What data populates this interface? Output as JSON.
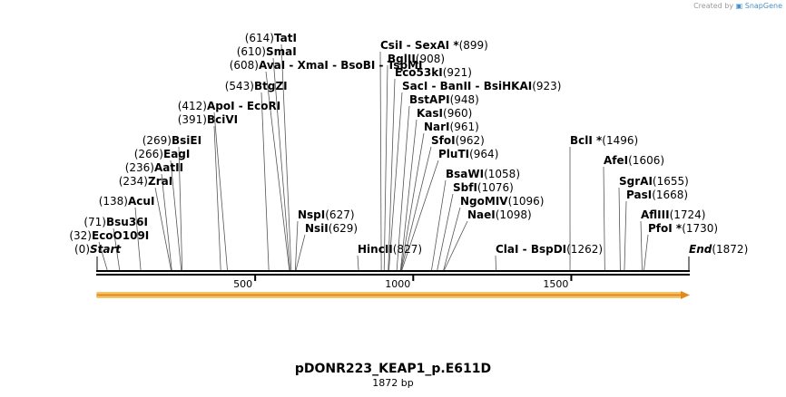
{
  "credit": {
    "text": "Created by",
    "logo": "SnapGene"
  },
  "title": "pDONR223_KEAP1_p.E611D",
  "subtitle": "1872 bp",
  "colors": {
    "feature_fill": "#f5c46a",
    "feature_stroke": "#e08a1e",
    "line": "#000000"
  },
  "sequence_length": 1872,
  "ticks": [
    {
      "label": "500",
      "value": 500
    },
    {
      "label": "1000",
      "value": 1000
    },
    {
      "label": "1500",
      "value": 1500
    }
  ],
  "sites": [
    {
      "pos_text": "(0)",
      "name": "Start",
      "pos": 0,
      "italic": true
    },
    {
      "pos_text": "(32)",
      "name": "EcoO109I",
      "pos": 32
    },
    {
      "pos_text": "(71)",
      "name": "Bsu36I",
      "pos": 71
    },
    {
      "pos_text": "(138)",
      "name": "AcuI",
      "pos": 138
    },
    {
      "pos_text": "(234)",
      "name": "ZraI",
      "pos": 234
    },
    {
      "pos_text": "(236)",
      "name": "AatII",
      "pos": 236
    },
    {
      "pos_text": "(266)",
      "name": "EagI",
      "pos": 266
    },
    {
      "pos_text": "(269)",
      "name": "BsiEI",
      "pos": 269
    },
    {
      "pos_text": "(391)",
      "name": "BciVI",
      "pos": 391
    },
    {
      "pos_text": "(412)",
      "name": "ApoI  - EcoRI",
      "pos": 412
    },
    {
      "pos_text": "(543)",
      "name": "BtgZI",
      "pos": 543
    },
    {
      "pos_text": "(608)",
      "name": "AvaI  - XmaI  - BsoBI  - TspMI",
      "pos": 608
    },
    {
      "pos_text": "(610)",
      "name": "SmaI",
      "pos": 610
    },
    {
      "pos_text": "(614)",
      "name": "TatI",
      "pos": 614
    },
    {
      "name": "NspI",
      "pos_text": "(627)",
      "pos": 627
    },
    {
      "name": "NsiI",
      "pos_text": "(629)",
      "pos": 629
    },
    {
      "name": "HincII",
      "pos_text": "(827)",
      "pos": 827
    },
    {
      "name": "CsiI  - SexAI *",
      "pos_text": "(899)",
      "pos": 899
    },
    {
      "name": "BglII",
      "pos_text": "(908)",
      "pos": 908
    },
    {
      "name": "Eco53kI",
      "pos_text": "(921)",
      "pos": 921
    },
    {
      "name": "SacI  - BanII  - BsiHKAI",
      "pos_text": "(923)",
      "pos": 923
    },
    {
      "name": "BstAPI",
      "pos_text": "(948)",
      "pos": 948
    },
    {
      "name": "KasI",
      "pos_text": "(960)",
      "pos": 960
    },
    {
      "name": "NarI",
      "pos_text": "(961)",
      "pos": 961
    },
    {
      "name": "SfoI",
      "pos_text": "(962)",
      "pos": 962
    },
    {
      "name": "PluTI",
      "pos_text": "(964)",
      "pos": 964
    },
    {
      "name": "BsaWI",
      "pos_text": "(1058)",
      "pos": 1058
    },
    {
      "name": "SbfI",
      "pos_text": "(1076)",
      "pos": 1076
    },
    {
      "name": "NgoMIV",
      "pos_text": "(1096)",
      "pos": 1096
    },
    {
      "name": "NaeI",
      "pos_text": "(1098)",
      "pos": 1098
    },
    {
      "name": "ClaI  - BspDI",
      "pos_text": "(1262)",
      "pos": 1262
    },
    {
      "name": "BclI *",
      "pos_text": "(1496)",
      "pos": 1496
    },
    {
      "name": "AfeI",
      "pos_text": "(1606)",
      "pos": 1606
    },
    {
      "name": "SgrAI",
      "pos_text": "(1655)",
      "pos": 1655
    },
    {
      "name": "PasI",
      "pos_text": "(1668)",
      "pos": 1668
    },
    {
      "name": "AflIII",
      "pos_text": "(1724)",
      "pos": 1724
    },
    {
      "name": "PfoI *",
      "pos_text": "(1730)",
      "pos": 1730
    },
    {
      "name": "End",
      "pos_text": "(1872)",
      "pos": 1872,
      "italic": true
    }
  ]
}
